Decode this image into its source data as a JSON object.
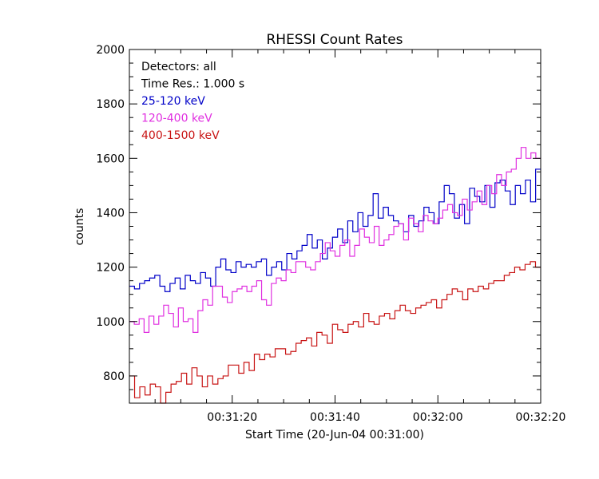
{
  "chart_data": {
    "type": "line",
    "title": "RHESSI Count Rates",
    "xlabel": "Start Time (20-Jun-04 00:31:00)",
    "ylabel": "counts",
    "x_unit": "seconds after 00:31:00",
    "xlim": [
      0,
      80
    ],
    "ylim": [
      700,
      2000
    ],
    "yticks": [
      800,
      1000,
      1200,
      1400,
      1600,
      1800,
      2000
    ],
    "xticks": [
      {
        "x": 20,
        "label": "00:31:20"
      },
      {
        "x": 40,
        "label": "00:31:40"
      },
      {
        "x": 60,
        "label": "00:32:00"
      },
      {
        "x": 80,
        "label": "00:32:20"
      }
    ],
    "annotations": [
      "Detectors: all",
      "Time Res.: 1.000 s"
    ],
    "series": [
      {
        "name": "25-120 keV",
        "color": "#0000c8",
        "values": [
          1130,
          1120,
          1140,
          1150,
          1160,
          1170,
          1130,
          1110,
          1140,
          1160,
          1120,
          1170,
          1150,
          1140,
          1180,
          1160,
          1130,
          1200,
          1230,
          1190,
          1180,
          1220,
          1200,
          1210,
          1200,
          1220,
          1230,
          1170,
          1200,
          1220,
          1190,
          1250,
          1230,
          1260,
          1280,
          1320,
          1270,
          1300,
          1230,
          1270,
          1310,
          1340,
          1290,
          1370,
          1330,
          1400,
          1350,
          1390,
          1470,
          1380,
          1420,
          1390,
          1370,
          1360,
          1330,
          1390,
          1350,
          1370,
          1420,
          1400,
          1360,
          1440,
          1500,
          1470,
          1380,
          1430,
          1360,
          1490,
          1460,
          1440,
          1500,
          1420,
          1510,
          1520,
          1480,
          1430,
          1500,
          1470,
          1520,
          1440,
          1560
        ]
      },
      {
        "name": "120-400 keV",
        "color": "#e030e0",
        "values": [
          1000,
          990,
          1010,
          960,
          1020,
          990,
          1020,
          1060,
          1030,
          980,
          1050,
          1000,
          1010,
          960,
          1040,
          1080,
          1060,
          1130,
          1130,
          1090,
          1070,
          1110,
          1120,
          1130,
          1110,
          1130,
          1150,
          1080,
          1060,
          1140,
          1160,
          1150,
          1190,
          1180,
          1220,
          1220,
          1200,
          1190,
          1220,
          1250,
          1290,
          1260,
          1240,
          1280,
          1300,
          1240,
          1280,
          1340,
          1310,
          1290,
          1350,
          1280,
          1300,
          1320,
          1350,
          1360,
          1300,
          1380,
          1360,
          1330,
          1390,
          1370,
          1360,
          1380,
          1410,
          1430,
          1400,
          1390,
          1450,
          1410,
          1440,
          1480,
          1430,
          1500,
          1470,
          1540,
          1500,
          1550,
          1560,
          1600,
          1640,
          1600,
          1620,
          1600
        ]
      },
      {
        "name": "400-1500 keV",
        "color": "#c81414",
        "values": [
          800,
          720,
          760,
          730,
          770,
          760,
          700,
          740,
          770,
          780,
          810,
          770,
          830,
          800,
          760,
          800,
          770,
          790,
          800,
          840,
          840,
          810,
          850,
          820,
          880,
          860,
          880,
          870,
          900,
          900,
          880,
          890,
          920,
          930,
          940,
          910,
          960,
          950,
          920,
          990,
          970,
          960,
          990,
          1000,
          980,
          1030,
          1000,
          990,
          1020,
          1030,
          1010,
          1040,
          1060,
          1040,
          1030,
          1050,
          1060,
          1070,
          1080,
          1050,
          1080,
          1100,
          1120,
          1110,
          1080,
          1120,
          1110,
          1130,
          1120,
          1140,
          1150,
          1150,
          1170,
          1180,
          1200,
          1190,
          1210,
          1220,
          1200
        ]
      }
    ]
  }
}
